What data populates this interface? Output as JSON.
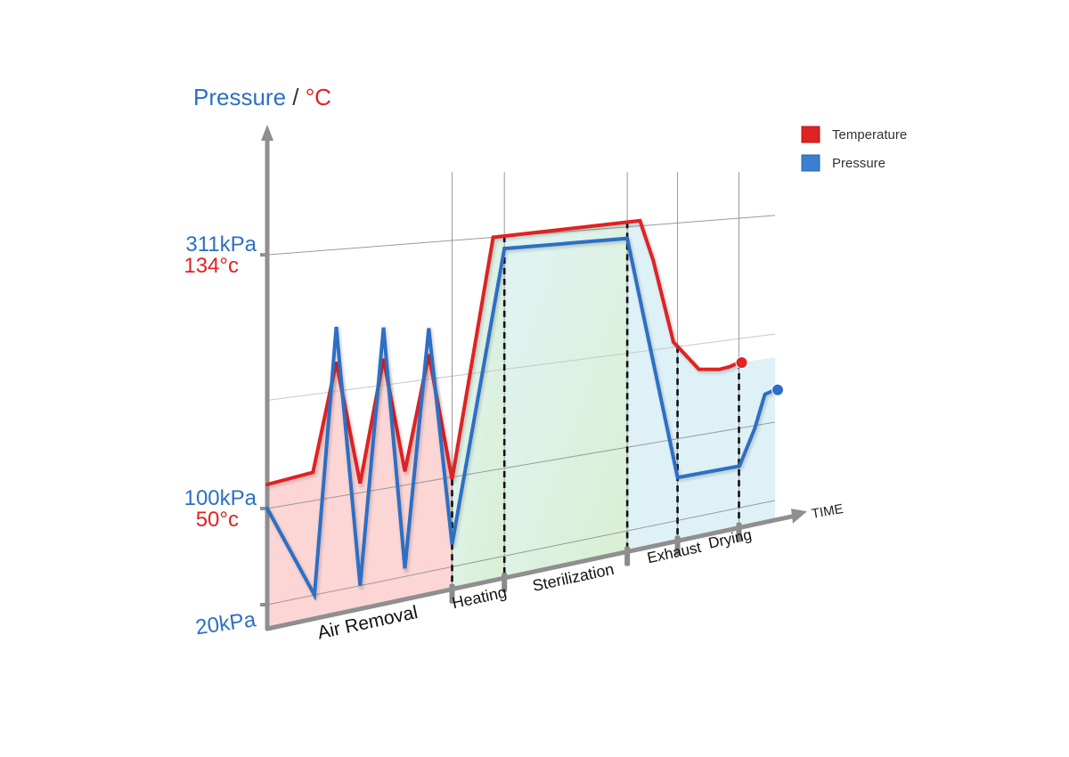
{
  "chart_data": {
    "type": "line",
    "title": "",
    "y_axis_label": {
      "pressure": "Pressure",
      "separator": " / ",
      "unit": "°C"
    },
    "x_axis_label": "TIME",
    "y_ticks": [
      {
        "pressure": "311kPa",
        "temperature": "134°c",
        "kpa": 311
      },
      {
        "pressure": "100kPa",
        "temperature": "50°c",
        "kpa": 100
      },
      {
        "pressure": "20kPa",
        "temperature": "",
        "kpa": 20
      }
    ],
    "phases": [
      {
        "label": "Air Removal",
        "start": 0,
        "end": 0.364,
        "color": "#ffd6d6"
      },
      {
        "label": "Heating",
        "start": 0.364,
        "end": 0.467,
        "color": "#ddf2dd"
      },
      {
        "label": "Sterilization",
        "start": 0.467,
        "end": 0.709,
        "color": "#e6f7e0"
      },
      {
        "label": "Exhaust",
        "start": 0.709,
        "end": 0.808,
        "color": "#ddf1f8"
      },
      {
        "label": "Drying",
        "start": 0.808,
        "end": 0.929,
        "color": "#ddf1f8"
      }
    ],
    "series": [
      {
        "name": "Temperature",
        "color": "#e02222",
        "x": [
          0,
          0.09,
          0.136,
          0.183,
          0.229,
          0.271,
          0.318,
          0.364,
          0.445,
          0.734,
          0.76,
          0.8,
          0.85,
          0.89,
          0.91,
          0.929
        ],
        "y": [
          120,
          124,
          215,
          108,
          213,
          112,
          212,
          98,
          311,
          316,
          277,
          195,
          165,
          162,
          163,
          166
        ]
      },
      {
        "name": "Pressure",
        "color": "#2d6fc4",
        "x": [
          0,
          0.093,
          0.136,
          0.183,
          0.229,
          0.271,
          0.318,
          0.364,
          0.467,
          0.709,
          0.808,
          0.93,
          0.96,
          0.98,
          1.0
        ],
        "y": [
          100,
          20,
          245,
          20,
          240,
          27,
          235,
          40,
          300,
          300,
          62,
          62,
          97,
          130,
          133
        ]
      }
    ],
    "legend": {
      "position": "top-right",
      "entries": [
        {
          "label": "Temperature",
          "color": "#e02222"
        },
        {
          "label": "Pressure",
          "color": "#2d6fc4"
        }
      ]
    }
  }
}
